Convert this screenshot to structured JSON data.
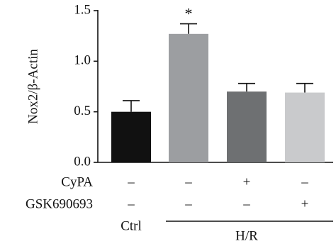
{
  "chart_data": {
    "type": "bar",
    "y_label": "Nox2/β-Actin",
    "values": [
      0.5,
      1.27,
      0.7,
      0.69
    ],
    "errors": [
      0.11,
      0.1,
      0.08,
      0.09
    ],
    "colors": [
      "#111111",
      "#9c9ea1",
      "#6e7072",
      "#c9cacc"
    ],
    "annotations": [
      {
        "bar": 1,
        "text": "*"
      }
    ],
    "ylim": [
      0,
      1.5
    ],
    "yticks": [
      {
        "value": 0,
        "label": "0.0"
      },
      0.5,
      {
        "value": 1,
        "label": "1.0"
      },
      1.5
    ],
    "rows": [
      {
        "name": "CyPA",
        "labels": [
          "–",
          "–",
          "+",
          "–"
        ]
      },
      {
        "name": "GSK690693",
        "labels": [
          "–",
          "–",
          "–",
          "+"
        ]
      }
    ],
    "groups": [
      {
        "label": "Ctrl",
        "bars": [
          0,
          0
        ]
      },
      {
        "label": "H/R",
        "bars": [
          1,
          3
        ]
      }
    ]
  }
}
